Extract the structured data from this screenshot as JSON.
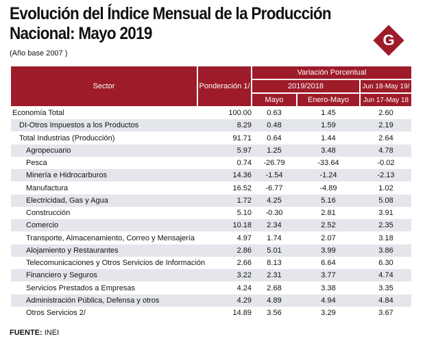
{
  "title_line1": "Evolución del Índice Mensual de la Producción",
  "title_line2": "Nacional: Mayo 2019",
  "subtitle": "(Año base 2007 )",
  "logo_letter": "G",
  "header": {
    "sector": "Sector",
    "ponderacion": "Ponderación 1/",
    "variacion": "Variación Porcentual",
    "period": "2019/2018",
    "mayo": "Mayo",
    "enero_mayo": "Enero-Mayo",
    "last_top": "Jun 18-May 19/",
    "last_bottom": "Jun 17-May 18"
  },
  "rows": [
    {
      "sector": "Economía Total",
      "pond": "100.00",
      "mayo": "0.63",
      "ene": "1.45",
      "last": "2.60"
    },
    {
      "sector": "DI-Otros Impuestos a los Productos",
      "pond": "8.29",
      "mayo": "0.48",
      "ene": "1.59",
      "last": "2.19"
    },
    {
      "sector": "Total  Industrias (Producción)",
      "pond": "91.71",
      "mayo": "0.64",
      "ene": "1.44",
      "last": "2.64"
    },
    {
      "sector": "Agropecuario",
      "pond": "5.97",
      "mayo": "1.25",
      "ene": "3.48",
      "last": "4.78"
    },
    {
      "sector": "Pesca",
      "pond": "0.74",
      "mayo": "-26.79",
      "ene": "-33.64",
      "last": "-0.02"
    },
    {
      "sector": "Minería e Hidrocarburos",
      "pond": "14.36",
      "mayo": "-1.54",
      "ene": "-1.24",
      "last": "-2.13"
    },
    {
      "sector": "Manufactura",
      "pond": "16.52",
      "mayo": "-6.77",
      "ene": "-4.89",
      "last": "1.02"
    },
    {
      "sector": "Electricidad, Gas y Agua",
      "pond": "1.72",
      "mayo": "4.25",
      "ene": "5.16",
      "last": "5.08"
    },
    {
      "sector": "Construcción",
      "pond": "5.10",
      "mayo": "-0.30",
      "ene": "2.81",
      "last": "3.91"
    },
    {
      "sector": "Comercio",
      "pond": "10.18",
      "mayo": "2.34",
      "ene": "2.52",
      "last": "2.35"
    },
    {
      "sector": "Transporte, Almacenamiento, Correo y Mensajería",
      "pond": "4.97",
      "mayo": "1.74",
      "ene": "2.07",
      "last": "3.18"
    },
    {
      "sector": "Alojamiento y Restaurantes",
      "pond": "2.86",
      "mayo": "5.01",
      "ene": "3.99",
      "last": "3.86"
    },
    {
      "sector": "Telecomunicaciones y Otros Servicios de Información",
      "pond": "2.66",
      "mayo": "8.13",
      "ene": "6.64",
      "last": "6.30"
    },
    {
      "sector": "Financiero y Seguros",
      "pond": "3.22",
      "mayo": "2.31",
      "ene": "3.77",
      "last": "4.74"
    },
    {
      "sector": "Servicios Prestados a Empresas",
      "pond": "4.24",
      "mayo": "2.68",
      "ene": "3.38",
      "last": "3.35"
    },
    {
      "sector": "Administración Pública, Defensa y otros",
      "pond": "4.29",
      "mayo": "4.89",
      "ene": "4.94",
      "last": "4.84"
    },
    {
      "sector": "Otros Servicios 2/",
      "pond": "14.89",
      "mayo": "3.56",
      "ene": "3.29",
      "last": "3.67"
    }
  ],
  "source_label": "FUENTE:",
  "source_value": "INEI",
  "colors": {
    "header_bg": "#9e1b2a",
    "row_alt": "#e4e6ec"
  }
}
